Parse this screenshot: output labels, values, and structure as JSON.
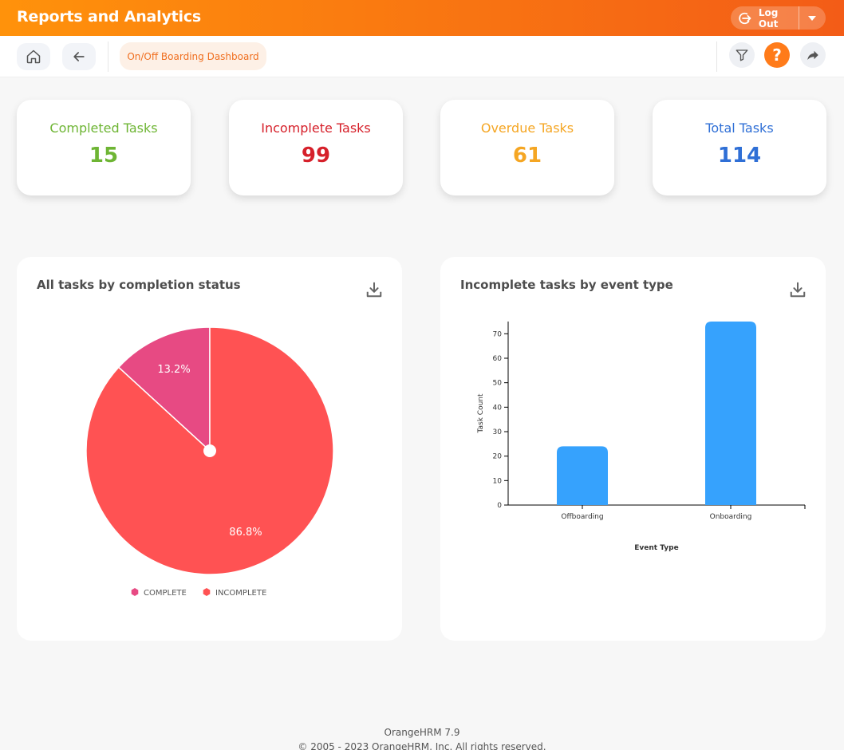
{
  "header": {
    "title": "Reports and Analytics",
    "logout_label": "Log Out"
  },
  "toolbar": {
    "active_tab": "On/Off Boarding Dashboard",
    "help_label": "?"
  },
  "kpis": [
    {
      "label": "Completed Tasks",
      "value": "15",
      "color": "#6eb534"
    },
    {
      "label": "Incomplete Tasks",
      "value": "99",
      "color": "#d6202a"
    },
    {
      "label": "Overdue Tasks",
      "value": "61",
      "color": "#f5a623"
    },
    {
      "label": "Total Tasks",
      "value": "114",
      "color": "#2f6fd6"
    }
  ],
  "charts": {
    "pie_title": "All tasks by completion status",
    "bar_title": "Incomplete tasks by event type"
  },
  "chart_data": [
    {
      "type": "pie",
      "title": "All tasks by completion status",
      "labels": [
        "COMPLETE",
        "INCOMPLETE"
      ],
      "values": [
        13.2,
        86.8
      ],
      "value_labels": [
        "13.2%",
        "86.8%"
      ],
      "colors": [
        "#e74a83",
        "#ff5253"
      ],
      "legend": "bottom"
    },
    {
      "type": "bar",
      "title": "Incomplete tasks by event type",
      "categories": [
        "Offboarding",
        "Onboarding"
      ],
      "values": [
        24,
        75
      ],
      "xlabel": "Event Type",
      "ylabel": "Task Count",
      "ylim": [
        0,
        75
      ],
      "yticks": [
        0,
        10,
        20,
        30,
        40,
        50,
        60,
        70
      ],
      "color": "#36a2fd",
      "grid": false
    }
  ],
  "footer": {
    "version": "OrangeHRM 7.9",
    "copyright": "© 2005 - 2023 OrangeHRM, Inc. All rights reserved."
  },
  "colors": {
    "accent": "#ff7b1a",
    "header_start": "#ff920b",
    "header_end": "#f35c17"
  }
}
